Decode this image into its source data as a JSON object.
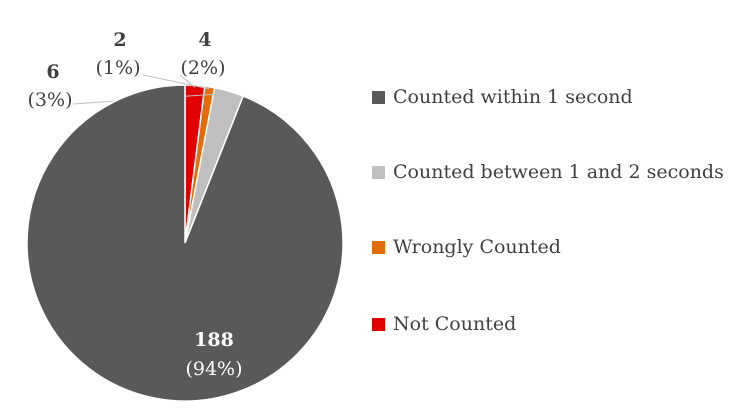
{
  "chart_data": {
    "type": "pie",
    "title": "",
    "slices": [
      {
        "label": "Not Counted",
        "value": 4,
        "percent_label": "(2%)",
        "color": "#e00000"
      },
      {
        "label": "Wrongly Counted",
        "value": 2,
        "percent_label": "(1%)",
        "color": "#e36c0a"
      },
      {
        "label": "Counted between 1 and 2 seconds",
        "value": 6,
        "percent_label": "(3%)",
        "color": "#bfbfbf"
      },
      {
        "label": "Counted within 1 second",
        "value": 188,
        "percent_label": "(94%)",
        "color": "#595959"
      }
    ],
    "legend": {
      "position": "right",
      "entries": [
        {
          "label": "Counted within 1 second",
          "color": "#595959"
        },
        {
          "label": "Counted between 1 and 2 seconds",
          "color": "#bfbfbf"
        },
        {
          "label": "Wrongly Counted",
          "color": "#e36c0a"
        },
        {
          "label": "Not Counted",
          "color": "#e00000"
        }
      ]
    }
  }
}
